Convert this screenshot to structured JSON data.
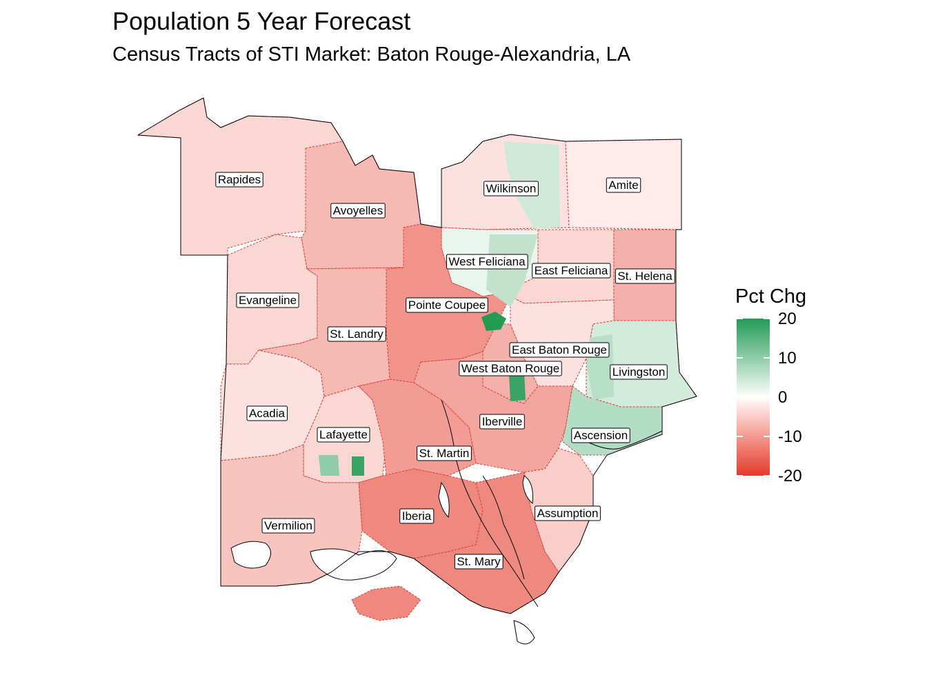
{
  "title": "Population 5 Year Forecast",
  "subtitle": "Census Tracts of STI Market: Baton Rouge-Alexandria, LA",
  "legend": {
    "title": "Pct Chg",
    "ticks": [
      "20",
      "10",
      "0",
      "-10",
      "-20"
    ],
    "colors": {
      "high": "#239b55",
      "mid": "#ffffff",
      "low": "#e33a2a"
    }
  },
  "parishes": [
    {
      "name": "Rapides",
      "pct_chg": -4
    },
    {
      "name": "Avoyelles",
      "pct_chg": -7
    },
    {
      "name": "Wilkinson",
      "pct_chg": -3
    },
    {
      "name": "Amite",
      "pct_chg": -2
    },
    {
      "name": "West Feliciana",
      "pct_chg": 2
    },
    {
      "name": "East Feliciana",
      "pct_chg": -4
    },
    {
      "name": "St. Helena",
      "pct_chg": -8
    },
    {
      "name": "Evangeline",
      "pct_chg": -4
    },
    {
      "name": "Pointe Coupee",
      "pct_chg": -11
    },
    {
      "name": "St. Landry",
      "pct_chg": -7
    },
    {
      "name": "East Baton Rouge",
      "pct_chg": -3
    },
    {
      "name": "Livingston",
      "pct_chg": 4
    },
    {
      "name": "West Baton Rouge",
      "pct_chg": -8
    },
    {
      "name": "Acadia",
      "pct_chg": -3
    },
    {
      "name": "Lafayette",
      "pct_chg": -4
    },
    {
      "name": "Iberville",
      "pct_chg": -9
    },
    {
      "name": "Ascension",
      "pct_chg": 7
    },
    {
      "name": "St. Martin",
      "pct_chg": -10
    },
    {
      "name": "Iberia",
      "pct_chg": -12
    },
    {
      "name": "Vermilion",
      "pct_chg": -6
    },
    {
      "name": "Assumption",
      "pct_chg": -5
    },
    {
      "name": "St. Mary",
      "pct_chg": -12
    }
  ]
}
